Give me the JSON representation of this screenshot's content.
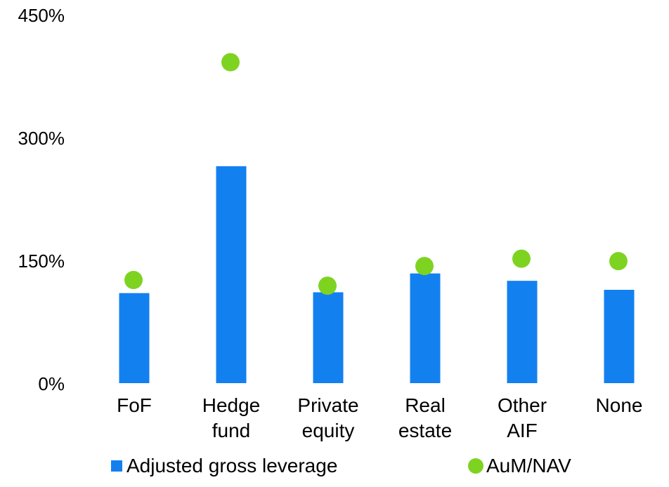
{
  "chart_data": {
    "type": "bar",
    "categories": [
      [
        "FoF"
      ],
      [
        "Hedge",
        "fund"
      ],
      [
        "Private",
        "equity"
      ],
      [
        "Real",
        "estate"
      ],
      [
        "Other",
        "AIF"
      ],
      [
        "None"
      ]
    ],
    "series": [
      {
        "name": "Adjusted gross leverage",
        "kind": "bar",
        "color": "#1380F0",
        "values": [
          110,
          265,
          111,
          134,
          125,
          114
        ]
      },
      {
        "name": "AuM/NAV",
        "kind": "dot",
        "color": "#7ED321",
        "values": [
          126,
          392,
          119,
          143,
          152,
          149
        ]
      }
    ],
    "ylim": [
      0,
      450
    ],
    "yticks": [
      0,
      150,
      300,
      450
    ],
    "ytick_labels": [
      "0%",
      "150%",
      "300%",
      "450%"
    ],
    "grid": false,
    "legend_position": "bottom"
  }
}
